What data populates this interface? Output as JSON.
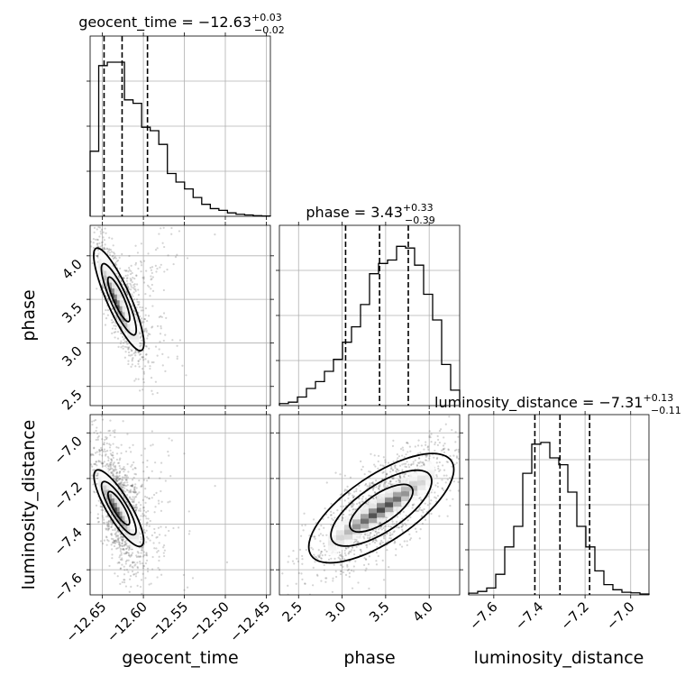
{
  "chart_data": {
    "type": "corner",
    "parameters": [
      {
        "name": "geocent_time",
        "label": "geocent_time",
        "median": -12.63,
        "plus": "+0.03",
        "minus": "−0.02",
        "title_main": "geocent_time = −12.63",
        "lim": [
          -12.665,
          -12.445
        ],
        "ticks": [
          -12.65,
          -12.6,
          -12.55,
          -12.5,
          -12.45
        ],
        "tick_labels": [
          "−12.65",
          "−12.60",
          "−12.55",
          "−12.50",
          "−12.45"
        ],
        "quantiles": [
          -12.648,
          -12.626,
          -12.595
        ]
      },
      {
        "name": "phase",
        "label": "phase",
        "median": 3.43,
        "plus": "+0.33",
        "minus": "−0.39",
        "title_main": "phase = 3.43",
        "lim": [
          2.28,
          4.35
        ],
        "ticks": [
          2.5,
          3.0,
          3.5,
          4.0
        ],
        "tick_labels": [
          "2.5",
          "3.0",
          "3.5",
          "4.0"
        ],
        "quantiles": [
          3.04,
          3.43,
          3.76
        ]
      },
      {
        "name": "luminosity_distance",
        "label": "luminosity_distance",
        "median": -7.31,
        "plus": "+0.13",
        "minus": "−0.11",
        "title_main": "luminosity_distance = −7.31",
        "lim": [
          -7.71,
          -6.92
        ],
        "ticks": [
          -7.6,
          -7.4,
          -7.2,
          -7.0
        ],
        "tick_labels": [
          "−7.6",
          "−7.4",
          "−7.2",
          "−7.0"
        ],
        "quantiles": [
          -7.42,
          -7.31,
          -7.18
        ]
      }
    ],
    "histograms": [
      {
        "param": "geocent_time",
        "ymax": 1.0,
        "values": [
          0.38,
          0.88,
          0.9,
          0.9,
          0.68,
          0.66,
          0.52,
          0.5,
          0.42,
          0.25,
          0.2,
          0.16,
          0.11,
          0.07,
          0.045,
          0.035,
          0.02,
          0.012,
          0.008,
          0.004,
          0.002
        ]
      },
      {
        "param": "phase",
        "ymax": 1.0,
        "values": [
          0.012,
          0.02,
          0.05,
          0.1,
          0.14,
          0.2,
          0.27,
          0.37,
          0.46,
          0.59,
          0.77,
          0.83,
          0.85,
          0.93,
          0.92,
          0.82,
          0.65,
          0.5,
          0.24,
          0.09
        ]
      },
      {
        "param": "luminosity_distance",
        "ymax": 1.0,
        "values": [
          0.01,
          0.02,
          0.04,
          0.12,
          0.28,
          0.4,
          0.71,
          0.88,
          0.89,
          0.8,
          0.76,
          0.6,
          0.4,
          0.28,
          0.14,
          0.06,
          0.03,
          0.015,
          0.012,
          0.005
        ]
      }
    ],
    "pairs": [
      {
        "x": "geocent_time",
        "y": "phase",
        "center": [
          -12.63,
          3.5
        ],
        "sx": 0.012,
        "sy": 0.3,
        "rho": -0.85
      },
      {
        "x": "geocent_time",
        "y": "luminosity_distance",
        "center": [
          -12.63,
          -7.33
        ],
        "sx": 0.012,
        "sy": 0.12,
        "rho": -0.6
      },
      {
        "x": "phase",
        "y": "luminosity_distance",
        "center": [
          3.45,
          -7.33
        ],
        "sx": 0.35,
        "sy": 0.12,
        "rho": 0.75
      }
    ],
    "grid": true,
    "colors": {
      "ink": "#000000",
      "grid": "#b0b0b0",
      "scatter": "#555555"
    }
  }
}
